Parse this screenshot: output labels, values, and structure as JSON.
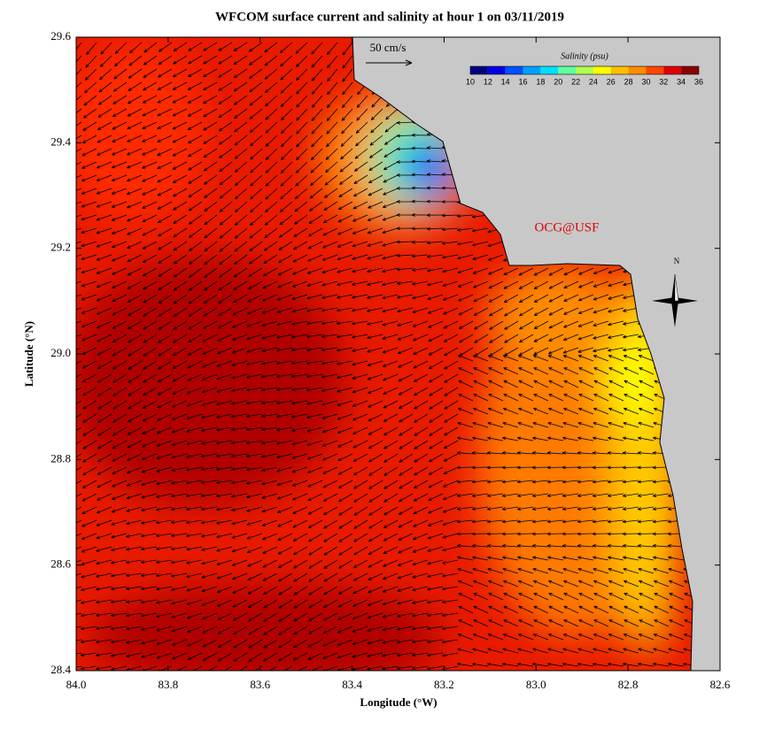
{
  "title": "WFCOM surface current and salinity at hour 1 on 03/11/2019",
  "x_axis": {
    "label": "Longitude (°W)",
    "ticks": [
      {
        "value": 84.0,
        "label": "84.0"
      },
      {
        "value": 83.8,
        "label": "83.8"
      },
      {
        "value": 83.6,
        "label": "83.6"
      },
      {
        "value": 83.4,
        "label": "83.4"
      },
      {
        "value": 83.2,
        "label": "83.2"
      },
      {
        "value": 83.0,
        "label": "83.0"
      },
      {
        "value": 82.8,
        "label": "82.8"
      },
      {
        "value": 82.6,
        "label": "82.6"
      }
    ]
  },
  "y_axis": {
    "label": "Latitude (°N)",
    "ticks": [
      {
        "value": 28.4,
        "label": "28.4"
      },
      28.6,
      28.8,
      {
        "value": 29.0,
        "label": "29.0"
      },
      29.2,
      29.4,
      29.6
    ]
  },
  "velocity_scale": "50 cm/s",
  "credit": "OCG@USF",
  "compass": "N",
  "colorbar": {
    "title": "Salinity (psu)",
    "ticks": [
      10,
      12,
      14,
      16,
      18,
      20,
      22,
      24,
      26,
      28,
      30,
      32,
      34,
      36
    ],
    "colors": [
      "#00007f",
      "#0000e0",
      "#0050ff",
      "#00a0ff",
      "#00e0ff",
      "#60ffa0",
      "#b0ff50",
      "#ffff00",
      "#ffc000",
      "#ff8c00",
      "#ff4500",
      "#e00000",
      "#8b0000"
    ]
  }
}
